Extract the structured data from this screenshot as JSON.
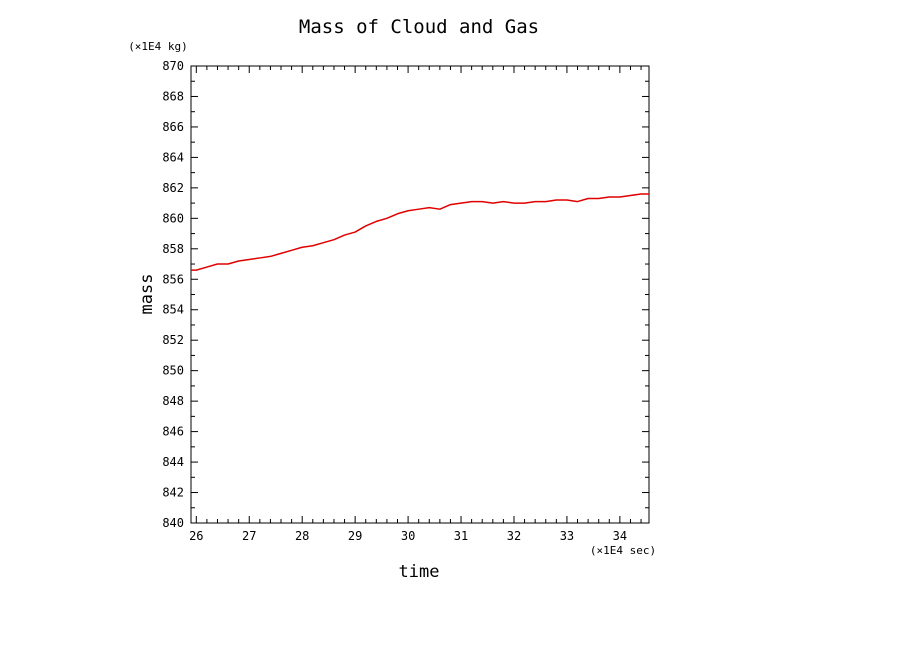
{
  "chart_data": {
    "type": "line",
    "title": "Mass of Cloud and Gas",
    "xlabel": "time",
    "ylabel": "mass",
    "x_unit": "(×1E4 sec)",
    "y_unit": "(×1E4 kg)",
    "xlim": [
      25.9,
      34.55
    ],
    "ylim": [
      840,
      870
    ],
    "x_ticks": [
      "26",
      "27",
      "28",
      "29",
      "30",
      "31",
      "32",
      "33",
      "34"
    ],
    "y_ticks": [
      "840",
      "842",
      "844",
      "846",
      "848",
      "850",
      "852",
      "854",
      "856",
      "858",
      "860",
      "862",
      "864",
      "866",
      "868",
      "870"
    ],
    "grid": false,
    "series": [
      {
        "color": "#e00000",
        "x": [
          25.9,
          26.0,
          26.2,
          26.4,
          26.6,
          26.8,
          27.0,
          27.2,
          27.4,
          27.6,
          27.8,
          28.0,
          28.2,
          28.4,
          28.6,
          28.8,
          29.0,
          29.2,
          29.4,
          29.6,
          29.8,
          30.0,
          30.2,
          30.4,
          30.6,
          30.8,
          31.0,
          31.2,
          31.4,
          31.6,
          31.8,
          32.0,
          32.2,
          32.4,
          32.6,
          32.8,
          33.0,
          33.2,
          33.4,
          33.6,
          33.8,
          34.0,
          34.2,
          34.4,
          34.55
        ],
        "values": [
          856.6,
          856.6,
          856.8,
          857.0,
          857.0,
          857.2,
          857.3,
          857.4,
          857.5,
          857.7,
          857.9,
          858.1,
          858.2,
          858.4,
          858.6,
          858.9,
          859.1,
          859.5,
          859.8,
          860.0,
          860.3,
          860.5,
          860.6,
          860.7,
          860.6,
          860.9,
          861.0,
          861.1,
          861.1,
          861.0,
          861.1,
          861.0,
          861.0,
          861.1,
          861.1,
          861.2,
          861.2,
          861.1,
          861.3,
          861.3,
          861.4,
          861.4,
          861.5,
          861.6,
          861.6
        ]
      }
    ]
  }
}
